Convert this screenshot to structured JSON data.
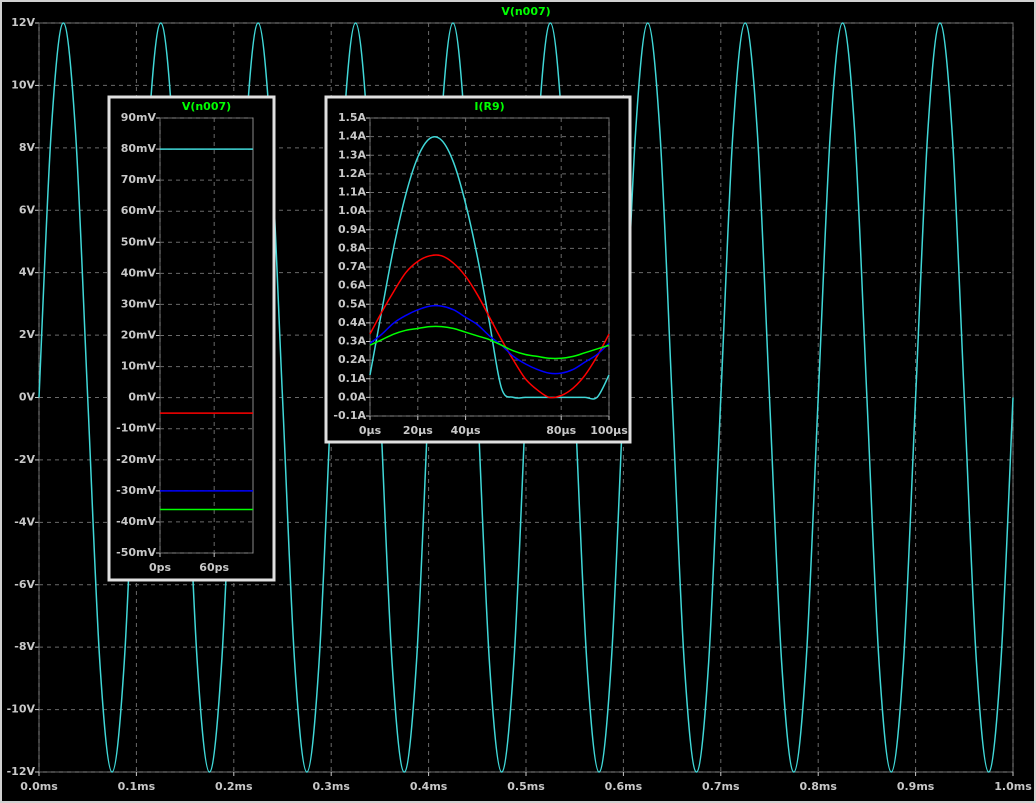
{
  "chart_data": [
    {
      "type": "line",
      "title": "V(n007)",
      "x": [
        0,
        0.0125,
        0.025,
        0.0375,
        0.05,
        0.0625,
        0.075,
        0.0875,
        0.1,
        0.1125,
        0.125,
        0.1375,
        0.15,
        0.1625,
        0.175,
        0.1875,
        0.2,
        0.2125,
        0.225,
        0.2375,
        0.25,
        0.2625,
        0.275,
        0.2875,
        0.3,
        0.3125,
        0.325,
        0.3375,
        0.35,
        0.3625,
        0.375,
        0.3875,
        0.4,
        0.4125,
        0.425,
        0.4375,
        0.45,
        0.4625,
        0.475,
        0.4875,
        0.5,
        0.5125,
        0.525,
        0.5375,
        0.55,
        0.5625,
        0.575,
        0.5875,
        0.6,
        0.6125,
        0.625,
        0.6375,
        0.65,
        0.6625,
        0.675,
        0.6875,
        0.7,
        0.7125,
        0.725,
        0.7375,
        0.75,
        0.7625,
        0.775,
        0.7875,
        0.8,
        0.8125,
        0.825,
        0.8375,
        0.85,
        0.8625,
        0.875,
        0.8875,
        0.9,
        0.9125,
        0.925,
        0.9375,
        0.95,
        0.9625,
        0.975,
        0.9875,
        1
      ],
      "series": [
        {
          "color": "#40d8d8",
          "values": [
            0,
            8.5,
            12,
            8.5,
            0,
            -8.5,
            -12,
            -8.5,
            0,
            8.5,
            12,
            8.5,
            0,
            -8.5,
            -12,
            -8.5,
            0,
            8.5,
            12,
            8.5,
            0,
            -8.5,
            -12,
            -8.5,
            0,
            8.5,
            12,
            8.5,
            0,
            -8.5,
            -12,
            -8.5,
            0,
            8.5,
            12,
            8.5,
            0,
            -8.5,
            -12,
            -8.5,
            0,
            8.5,
            12,
            8.5,
            0,
            -8.5,
            -12,
            -8.5,
            0,
            8.5,
            12,
            8.5,
            0,
            -8.5,
            -12,
            -8.5,
            0,
            8.5,
            12,
            8.5,
            0,
            -8.5,
            -12,
            -8.5,
            0,
            8.5,
            12,
            8.5,
            0,
            -8.5,
            -12,
            -8.5,
            0,
            8.5,
            12,
            8.5,
            0,
            -8.5,
            -12,
            -8.5,
            0
          ]
        }
      ],
      "xlim": [
        0,
        1
      ],
      "ylim": [
        -12,
        12
      ],
      "xticks": [
        {
          "value": 0,
          "label": "0.0ms"
        },
        {
          "value": 0.1,
          "label": "0.1ms"
        },
        {
          "value": 0.2,
          "label": "0.2ms"
        },
        {
          "value": 0.3,
          "label": "0.3ms"
        },
        {
          "value": 0.4,
          "label": "0.4ms"
        },
        {
          "value": 0.5,
          "label": "0.5ms"
        },
        {
          "value": 0.6,
          "label": "0.6ms"
        },
        {
          "value": 0.7,
          "label": "0.7ms"
        },
        {
          "value": 0.8,
          "label": "0.8ms"
        },
        {
          "value": 0.9,
          "label": "0.9ms"
        },
        {
          "value": 1,
          "label": "1.0ms"
        }
      ],
      "yticks": [
        {
          "value": -12,
          "label": "-12V"
        },
        {
          "value": -10,
          "label": "-10V"
        },
        {
          "value": -8,
          "label": "-8V"
        },
        {
          "value": -6,
          "label": "-6V"
        },
        {
          "value": -4,
          "label": "-4V"
        },
        {
          "value": -2,
          "label": "-2V"
        },
        {
          "value": 0,
          "label": "0V"
        },
        {
          "value": 2,
          "label": "2V"
        },
        {
          "value": 4,
          "label": "4V"
        },
        {
          "value": 6,
          "label": "6V"
        },
        {
          "value": 8,
          "label": "8V"
        },
        {
          "value": 10,
          "label": "10V"
        },
        {
          "value": 12,
          "label": "12V"
        }
      ],
      "grid": true,
      "smooth": true
    },
    {
      "type": "line",
      "title": "V(n007)",
      "x": [
        0,
        103
      ],
      "series": [
        {
          "color": "#40d8d8",
          "values": [
            80,
            80
          ]
        },
        {
          "color": "#ff0000",
          "values": [
            -5,
            -5
          ]
        },
        {
          "color": "#0000ff",
          "values": [
            -30,
            -30
          ]
        },
        {
          "color": "#00ff00",
          "values": [
            -36,
            -36
          ]
        }
      ],
      "xlim": [
        0,
        103
      ],
      "ylim": [
        -50,
        90
      ],
      "xticks": [
        {
          "value": 0,
          "label": "0ps"
        },
        {
          "value": 60,
          "label": "60ps"
        }
      ],
      "yticks": [
        {
          "value": -50,
          "label": "-50mV"
        },
        {
          "value": -40,
          "label": "-40mV"
        },
        {
          "value": -30,
          "label": "-30mV"
        },
        {
          "value": -20,
          "label": "-20mV"
        },
        {
          "value": -10,
          "label": "-10mV"
        },
        {
          "value": 0,
          "label": "0mV"
        },
        {
          "value": 10,
          "label": "10mV"
        },
        {
          "value": 20,
          "label": "20mV"
        },
        {
          "value": 30,
          "label": "30mV"
        },
        {
          "value": 40,
          "label": "40mV"
        },
        {
          "value": 50,
          "label": "50mV"
        },
        {
          "value": 60,
          "label": "60mV"
        },
        {
          "value": 70,
          "label": "70mV"
        },
        {
          "value": 80,
          "label": "80mV"
        },
        {
          "value": 90,
          "label": "90mV"
        }
      ],
      "grid": true,
      "smooth": false
    },
    {
      "type": "line",
      "title": "I(R9)",
      "x": [
        0,
        5,
        10,
        15,
        20,
        25,
        30,
        35,
        40,
        45,
        50,
        55,
        60,
        65,
        70,
        75,
        80,
        85,
        90,
        95,
        100
      ],
      "series": [
        {
          "color": "#40d8d8",
          "values": [
            0.12,
            0.47,
            0.81,
            1.09,
            1.29,
            1.39,
            1.38,
            1.26,
            1.04,
            0.75,
            0.4,
            0.05,
            0,
            0,
            0,
            0,
            0,
            0,
            0,
            0,
            0.12
          ]
        },
        {
          "color": "#ff0000",
          "values": [
            0.34,
            0.46,
            0.57,
            0.67,
            0.73,
            0.76,
            0.76,
            0.72,
            0.65,
            0.55,
            0.43,
            0.31,
            0.2,
            0.1,
            0.04,
            0,
            0.01,
            0.05,
            0.12,
            0.22,
            0.34
          ]
        },
        {
          "color": "#0000ff",
          "values": [
            0.29,
            0.34,
            0.4,
            0.44,
            0.47,
            0.49,
            0.49,
            0.47,
            0.43,
            0.39,
            0.33,
            0.28,
            0.22,
            0.18,
            0.15,
            0.13,
            0.13,
            0.15,
            0.19,
            0.23,
            0.29
          ]
        },
        {
          "color": "#00ff00",
          "values": [
            0.28,
            0.31,
            0.34,
            0.36,
            0.37,
            0.38,
            0.38,
            0.37,
            0.35,
            0.33,
            0.31,
            0.28,
            0.25,
            0.23,
            0.22,
            0.21,
            0.21,
            0.22,
            0.24,
            0.26,
            0.28
          ]
        }
      ],
      "xlim": [
        0,
        100
      ],
      "ylim": [
        -0.1,
        1.5
      ],
      "xticks": [
        {
          "value": 0,
          "label": "0µs"
        },
        {
          "value": 20,
          "label": "20µs"
        },
        {
          "value": 40,
          "label": "40µs"
        },
        {
          "value": 80,
          "label": "80µs"
        },
        {
          "value": 100,
          "label": "100µs"
        }
      ],
      "yticks": [
        {
          "value": -0.1,
          "label": "-0.1A"
        },
        {
          "value": 0,
          "label": "0.0A"
        },
        {
          "value": 0.1,
          "label": "0.1A"
        },
        {
          "value": 0.2,
          "label": "0.2A"
        },
        {
          "value": 0.3,
          "label": "0.3A"
        },
        {
          "value": 0.4,
          "label": "0.4A"
        },
        {
          "value": 0.5,
          "label": "0.5A"
        },
        {
          "value": 0.6,
          "label": "0.6A"
        },
        {
          "value": 0.7,
          "label": "0.7A"
        },
        {
          "value": 0.8,
          "label": "0.8A"
        },
        {
          "value": 0.9,
          "label": "0.9A"
        },
        {
          "value": 1,
          "label": "1.0A"
        },
        {
          "value": 1.1,
          "label": "1.1A"
        },
        {
          "value": 1.2,
          "label": "1.2A"
        },
        {
          "value": 1.3,
          "label": "1.3A"
        },
        {
          "value": 1.4,
          "label": "1.4A"
        },
        {
          "value": 1.5,
          "label": "1.5A"
        }
      ],
      "grid": true,
      "smooth": true
    }
  ]
}
